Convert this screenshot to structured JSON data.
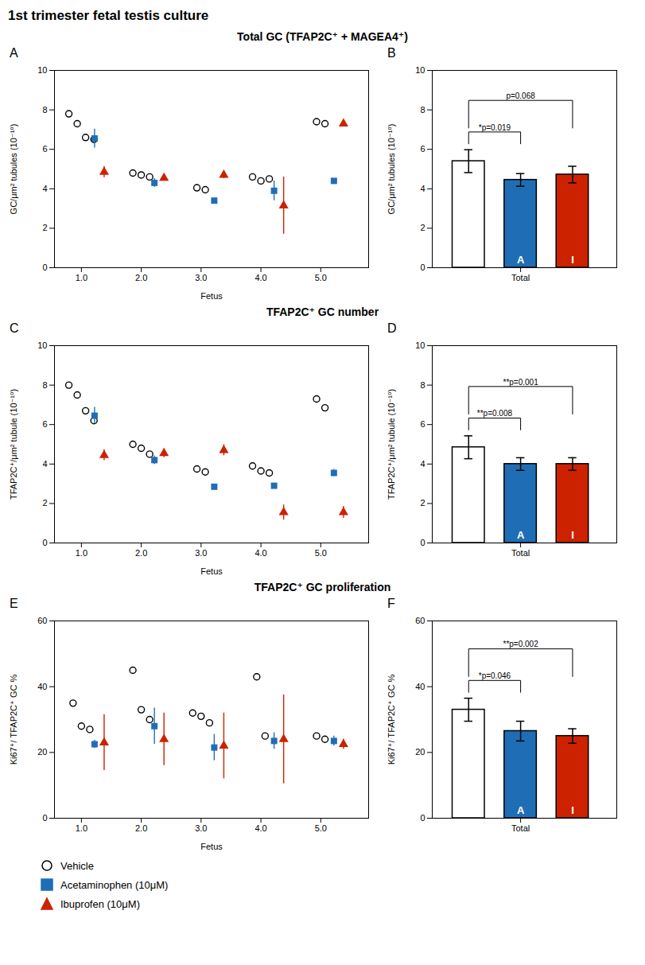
{
  "title": "1st trimester fetal testis culture",
  "chart_data": [
    {
      "type": "scatter",
      "title": "Total GC (TFAP2C⁺ + MAGEA4⁺)",
      "panel_label": "A",
      "xlabel": "Fetus",
      "ylabel": "GC/μm² tubules (10⁻¹⁰)",
      "x": [
        1,
        2,
        3,
        4,
        5
      ],
      "xlim": [
        0.55,
        5.8
      ],
      "xticks": [
        1,
        2,
        3,
        4,
        5
      ],
      "ylim": [
        0,
        10
      ],
      "yticks": [
        0,
        2,
        4,
        6,
        8,
        10
      ],
      "grid": false,
      "series": [
        {
          "name": "Vehicle",
          "color": "black",
          "marker": "circle",
          "values": [
            [
              7.8,
              7.3,
              6.6,
              6.5
            ],
            [
              4.8,
              4.7,
              4.6
            ],
            [
              4.05,
              3.95
            ],
            [
              4.6,
              4.4,
              4.5
            ],
            [
              7.4,
              7.3
            ]
          ]
        },
        {
          "name": "Acetaminophen (10μM)",
          "color": "#1f6eb5",
          "marker": "square",
          "values": [
            6.55,
            4.3,
            3.4,
            3.9,
            4.4
          ],
          "errors": [
            0.48,
            0.22,
            0.06,
            0.5,
            0.12
          ]
        },
        {
          "name": "Ibuprofen (10μM)",
          "color": "#cc2200",
          "marker": "triangle",
          "values": [
            4.85,
            4.55,
            4.7,
            3.15,
            7.3
          ],
          "errors": [
            0.28,
            0.08,
            0.18,
            1.45,
            0.0
          ]
        }
      ]
    },
    {
      "type": "bar",
      "panel_label": "B",
      "ylabel": "GC/μm² tubules (10⁻¹⁰)",
      "categories": [
        null,
        "Total",
        null
      ],
      "values": [
        5.4,
        4.45,
        4.72
      ],
      "errors": [
        0.58,
        0.32,
        0.42
      ],
      "colors": [
        "white",
        "#1f6eb5",
        "#cc2200"
      ],
      "bar_labels": [
        null,
        "A",
        "I"
      ],
      "p_values": [
        null,
        "*p=0.019",
        "p=0.068"
      ],
      "ylim": [
        0,
        10
      ],
      "yticks": [
        0,
        2,
        4,
        6,
        8,
        10
      ],
      "grid": false
    },
    {
      "type": "scatter",
      "title": "TFAP2C⁺ GC number",
      "panel_label": "C",
      "xlabel": "Fetus",
      "ylabel": "TFAP2C⁺/μm² tubule (10⁻¹⁰)",
      "x": [
        1,
        2,
        3,
        4,
        5
      ],
      "xlim": [
        0.55,
        5.8
      ],
      "xticks": [
        1,
        2,
        3,
        4,
        5
      ],
      "ylim": [
        0,
        10
      ],
      "yticks": [
        0,
        2,
        4,
        6,
        8,
        10
      ],
      "grid": false,
      "series": [
        {
          "name": "Vehicle",
          "color": "black",
          "marker": "circle",
          "values": [
            [
              8.0,
              7.5,
              6.7,
              6.2
            ],
            [
              5.0,
              4.8,
              4.5
            ],
            [
              3.75,
              3.6
            ],
            [
              3.9,
              3.65,
              3.55
            ],
            [
              7.3,
              6.85
            ]
          ]
        },
        {
          "name": "Acetaminophen (10μM)",
          "color": "#1f6eb5",
          "marker": "square",
          "values": [
            6.45,
            4.2,
            2.85,
            2.9,
            3.55
          ],
          "errors": [
            0.42,
            0.22,
            0.08,
            0.12,
            0.18
          ]
        },
        {
          "name": "Ibuprofen (10μM)",
          "color": "#cc2200",
          "marker": "triangle",
          "values": [
            4.45,
            4.55,
            4.7,
            1.55,
            1.55
          ],
          "errors": [
            0.28,
            0.22,
            0.28,
            0.38,
            0.3
          ]
        }
      ]
    },
    {
      "type": "bar",
      "panel_label": "D",
      "ylabel": "TFAP2C⁺/μm² tubule (10⁻¹⁰)",
      "categories": [
        null,
        "Total",
        null
      ],
      "values": [
        4.85,
        4.0,
        4.0
      ],
      "errors": [
        0.58,
        0.32,
        0.32
      ],
      "colors": [
        "white",
        "#1f6eb5",
        "#cc2200"
      ],
      "bar_labels": [
        null,
        "A",
        "I"
      ],
      "p_values": [
        null,
        "**p=0.008",
        "**p=0.001"
      ],
      "ylim": [
        0,
        10
      ],
      "yticks": [
        0,
        2,
        4,
        6,
        8,
        10
      ],
      "grid": false
    },
    {
      "type": "scatter",
      "title": "TFAP2C⁺ GC proliferation",
      "panel_label": "E",
      "xlabel": "Fetus",
      "ylabel": "Ki67⁺/ TFAP2C⁺ GC %",
      "x": [
        1,
        2,
        3,
        4,
        5
      ],
      "xlim": [
        0.55,
        5.8
      ],
      "xticks": [
        1,
        2,
        3,
        4,
        5
      ],
      "ylim": [
        0,
        60
      ],
      "yticks": [
        0,
        20,
        40,
        60
      ],
      "grid": false,
      "legend": "bottom",
      "series": [
        {
          "name": "Vehicle",
          "color": "black",
          "marker": "circle",
          "values": [
            [
              35,
              28,
              27
            ],
            [
              45,
              33,
              30
            ],
            [
              32,
              31,
              29
            ],
            [
              43,
              25
            ],
            [
              25,
              24
            ]
          ]
        },
        {
          "name": "Acetaminophen (10μM)",
          "color": "#1f6eb5",
          "marker": "square",
          "values": [
            22.5,
            28,
            21.5,
            23.5,
            23.5
          ],
          "errors": [
            1.2,
            5.5,
            4.0,
            2.5,
            1.5
          ]
        },
        {
          "name": "Ibuprofen (10μM)",
          "color": "#cc2200",
          "marker": "triangle",
          "values": [
            23,
            24,
            22,
            24,
            22.5
          ],
          "errors": [
            8.5,
            8.0,
            10.0,
            13.5,
            1.5
          ]
        }
      ]
    },
    {
      "type": "bar",
      "panel_label": "F",
      "ylabel": "Ki67⁺/ TFAP2C⁺ GC %",
      "categories": [
        null,
        "Total",
        null
      ],
      "values": [
        33,
        26.5,
        25
      ],
      "errors": [
        3.5,
        3.0,
        2.2
      ],
      "colors": [
        "white",
        "#1f6eb5",
        "#cc2200"
      ],
      "bar_labels": [
        null,
        "A",
        "I"
      ],
      "p_values": [
        null,
        "*p=0.046",
        "**p=0.002"
      ],
      "ylim": [
        0,
        60
      ],
      "yticks": [
        0,
        20,
        40,
        60
      ],
      "grid": false
    }
  ]
}
